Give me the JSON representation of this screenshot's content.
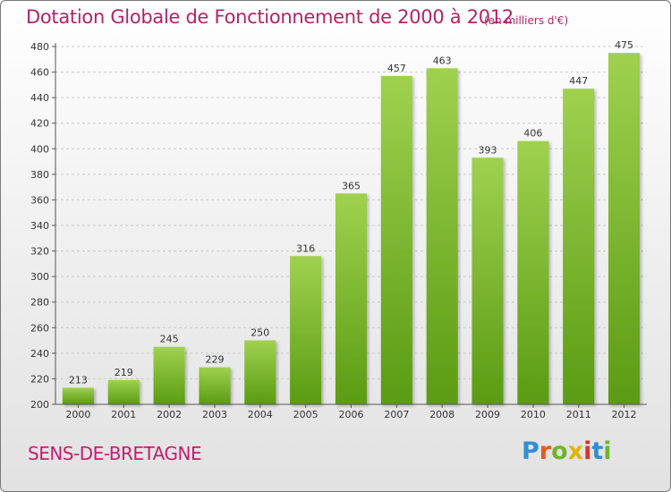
{
  "header": {
    "title": "Dotation Globale de Fonctionnement de 2000 à 2012",
    "unit": "(en milliers d'€)"
  },
  "footer": {
    "commune": "SENS-DE-BRETAGNE",
    "logo_letters": [
      "P",
      "r",
      "o",
      "x",
      "i",
      "t",
      "i"
    ]
  },
  "colors": {
    "title": "#b0246a",
    "bar_top": "#9fd14f",
    "bar_bottom": "#5a9b13",
    "logo": [
      "#2f8fd6",
      "#e85a1a",
      "#6fb52b",
      "#e0b400",
      "#d8322a",
      "#2f8fd6",
      "#6fb52b"
    ]
  },
  "chart_data": {
    "type": "bar",
    "title": "Dotation Globale de Fonctionnement de 2000 à 2012",
    "subtitle": "(en milliers d'€)",
    "categories": [
      "2000",
      "2001",
      "2002",
      "2003",
      "2004",
      "2005",
      "2006",
      "2007",
      "2008",
      "2009",
      "2010",
      "2011",
      "2012"
    ],
    "values": [
      213,
      219,
      245,
      229,
      250,
      316,
      365,
      457,
      463,
      393,
      406,
      447,
      475
    ],
    "ylim": [
      200,
      480
    ],
    "yticks": [
      200,
      220,
      240,
      260,
      280,
      300,
      320,
      340,
      360,
      380,
      400,
      420,
      440,
      460,
      480
    ],
    "grid": true,
    "data_labels": true
  }
}
